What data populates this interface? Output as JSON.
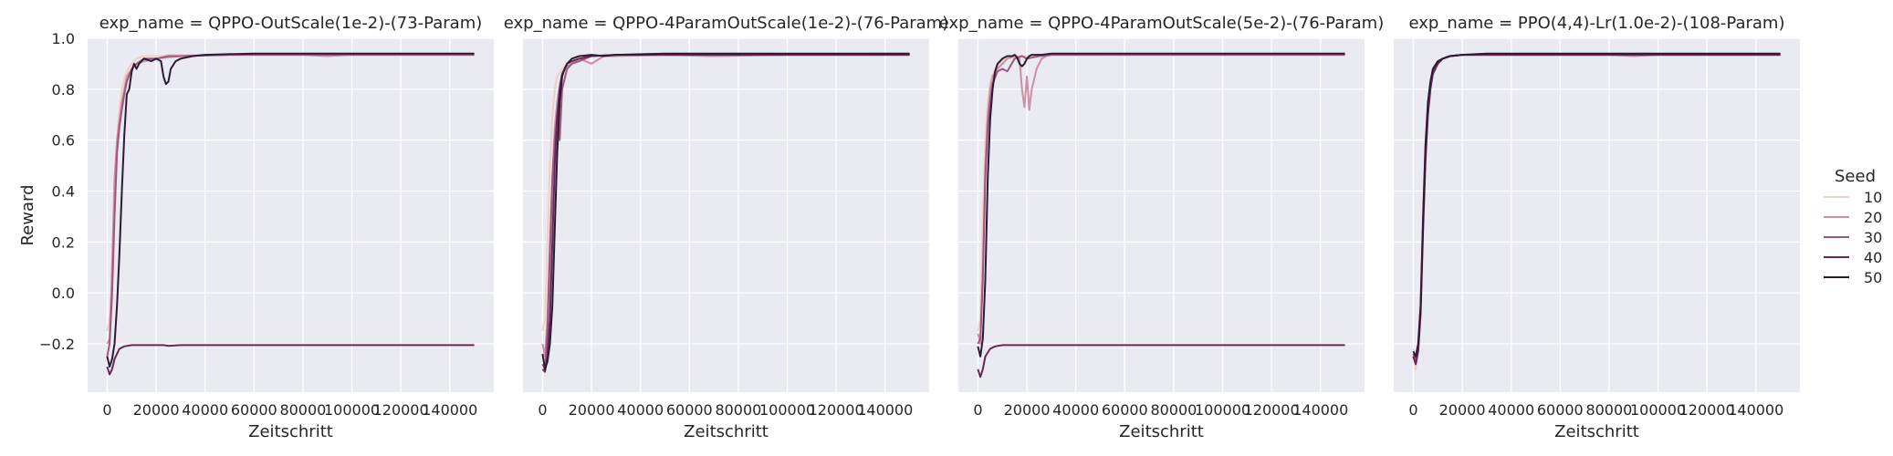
{
  "chart_data": {
    "type": "line",
    "xlabel": "Zeitschritt",
    "ylabel": "Reward",
    "xlim": [
      -8000,
      158000
    ],
    "ylim": [
      -0.39,
      1.0
    ],
    "xticks": [
      0,
      20000,
      40000,
      60000,
      80000,
      100000,
      120000,
      140000
    ],
    "xtick_labels": [
      "0",
      "20000",
      "40000",
      "60000",
      "80000",
      "100000",
      "120000",
      "140000"
    ],
    "yticks": [
      -0.2,
      0.0,
      0.2,
      0.4,
      0.6,
      0.8,
      1.0
    ],
    "ytick_labels": [
      "−0.2",
      "0.0",
      "0.2",
      "0.4",
      "0.6",
      "0.8",
      "1.0"
    ],
    "grid": true,
    "legend": {
      "title": "Seed",
      "placement": "right",
      "entries": [
        {
          "label": "10",
          "color": "#efd0c6"
        },
        {
          "label": "20",
          "color": "#cf8ea4"
        },
        {
          "label": "30",
          "color": "#a1567f"
        },
        {
          "label": "40",
          "color": "#662856"
        },
        {
          "label": "50",
          "color": "#2b1b35"
        }
      ]
    },
    "panels": [
      {
        "title": "exp_name = QPPO-OutScale(1e-2)-(73-Param)",
        "series": [
          {
            "name": "10",
            "x": [
              0,
              2000,
              3000,
              4000,
              5000,
              6000,
              7000,
              8000,
              10000,
              12000,
              15000,
              20000,
              25000,
              30000,
              40000,
              60000,
              100000,
              150000
            ],
            "y": [
              -0.15,
              -0.05,
              0.3,
              0.6,
              0.72,
              0.8,
              0.84,
              0.87,
              0.9,
              0.92,
              0.93,
              0.93,
              0.935,
              0.935,
              0.935,
              0.94,
              0.94,
              0.94
            ]
          },
          {
            "name": "20",
            "x": [
              0,
              1000,
              2000,
              3000,
              4000,
              5000,
              6000,
              7000,
              8000,
              10000,
              12000,
              15000,
              20000,
              30000,
              50000,
              80000,
              90000,
              100000,
              150000
            ],
            "y": [
              -0.2,
              -0.18,
              0.1,
              0.45,
              0.6,
              0.68,
              0.75,
              0.8,
              0.85,
              0.88,
              0.9,
              0.91,
              0.92,
              0.93,
              0.935,
              0.935,
              0.93,
              0.935,
              0.935
            ]
          },
          {
            "name": "30",
            "x": [
              0,
              1000,
              2000,
              3000,
              4000,
              5000,
              6000,
              7000,
              8000,
              10000,
              12000,
              15000,
              20000,
              25000,
              30000,
              50000,
              100000,
              150000
            ],
            "y": [
              -0.25,
              -0.2,
              0.0,
              0.3,
              0.55,
              0.65,
              0.72,
              0.78,
              0.83,
              0.88,
              0.9,
              0.92,
              0.92,
              0.93,
              0.93,
              0.935,
              0.935,
              0.935
            ]
          },
          {
            "name": "40",
            "x": [
              0,
              1000,
              2000,
              3000,
              5000,
              7000,
              10000,
              15000,
              20000,
              23000,
              25000,
              30000,
              50000,
              80000,
              120000,
              150000
            ],
            "y": [
              -0.29,
              -0.32,
              -0.3,
              -0.26,
              -0.22,
              -0.21,
              -0.205,
              -0.205,
              -0.205,
              -0.205,
              -0.208,
              -0.205,
              -0.205,
              -0.205,
              -0.205,
              -0.205
            ]
          },
          {
            "name": "50",
            "x": [
              0,
              1000,
              2000,
              3000,
              4000,
              5000,
              6000,
              7000,
              8000,
              9000,
              10000,
              11000,
              12000,
              13000,
              15000,
              18000,
              20000,
              22000,
              23000,
              24000,
              25000,
              26000,
              28000,
              30000,
              35000,
              40000,
              60000,
              80000,
              100000,
              150000
            ],
            "y": [
              -0.25,
              -0.29,
              -0.26,
              -0.2,
              -0.05,
              0.15,
              0.4,
              0.62,
              0.78,
              0.8,
              0.87,
              0.9,
              0.88,
              0.9,
              0.92,
              0.91,
              0.92,
              0.91,
              0.85,
              0.82,
              0.83,
              0.88,
              0.91,
              0.92,
              0.93,
              0.935,
              0.94,
              0.94,
              0.94,
              0.94
            ]
          }
        ]
      },
      {
        "title": "exp_name = QPPO-4ParamOutScale(1e-2)-(76-Param)",
        "series": [
          {
            "name": "10",
            "x": [
              0,
              1000,
              2000,
              3000,
              4000,
              5000,
              6000,
              8000,
              10000,
              12000,
              15000,
              20000,
              30000,
              50000,
              150000
            ],
            "y": [
              -0.15,
              -0.1,
              0.2,
              0.5,
              0.7,
              0.8,
              0.85,
              0.88,
              0.9,
              0.92,
              0.93,
              0.93,
              0.935,
              0.935,
              0.94
            ]
          },
          {
            "name": "20",
            "x": [
              0,
              1000,
              2000,
              3000,
              4000,
              5000,
              6000,
              7000,
              8000,
              10000,
              12000,
              15000,
              20000,
              25000,
              30000,
              50000,
              70000,
              100000,
              150000
            ],
            "y": [
              -0.2,
              -0.25,
              -0.1,
              0.2,
              0.45,
              0.65,
              0.75,
              0.82,
              0.86,
              0.89,
              0.9,
              0.92,
              0.9,
              0.93,
              0.93,
              0.935,
              0.93,
              0.935,
              0.935
            ]
          },
          {
            "name": "30",
            "x": [
              0,
              1000,
              2000,
              3000,
              4000,
              5000,
              6000,
              7000,
              8000,
              10000,
              12000,
              15000,
              20000,
              30000,
              50000,
              150000
            ],
            "y": [
              -0.28,
              -0.3,
              -0.15,
              0.15,
              0.45,
              0.6,
              0.7,
              0.6,
              0.8,
              0.88,
              0.9,
              0.91,
              0.93,
              0.935,
              0.935,
              0.935
            ]
          },
          {
            "name": "40",
            "x": [
              0,
              1000,
              2000,
              3000,
              4000,
              5000,
              6000,
              7000,
              8000,
              10000,
              12000,
              15000,
              20000,
              30000,
              50000,
              150000
            ],
            "y": [
              -0.3,
              -0.31,
              -0.25,
              -0.1,
              0.2,
              0.5,
              0.7,
              0.8,
              0.86,
              0.9,
              0.91,
              0.92,
              0.93,
              0.935,
              0.935,
              0.935
            ]
          },
          {
            "name": "50",
            "x": [
              0,
              1000,
              2000,
              3000,
              4000,
              5000,
              6000,
              7000,
              8000,
              9000,
              10000,
              12000,
              15000,
              20000,
              25000,
              30000,
              50000,
              100000,
              150000
            ],
            "y": [
              -0.24,
              -0.3,
              -0.27,
              -0.2,
              -0.05,
              0.25,
              0.55,
              0.75,
              0.85,
              0.88,
              0.9,
              0.92,
              0.93,
              0.935,
              0.93,
              0.935,
              0.94,
              0.94,
              0.94
            ]
          }
        ]
      },
      {
        "title": "exp_name = QPPO-4ParamOutScale(5e-2)-(76-Param)",
        "series": [
          {
            "name": "10",
            "x": [
              0,
              1000,
              2000,
              3000,
              4000,
              5000,
              6000,
              8000,
              10000,
              12000,
              15000,
              20000,
              30000,
              50000,
              150000
            ],
            "y": [
              -0.15,
              -0.1,
              0.3,
              0.6,
              0.75,
              0.82,
              0.86,
              0.89,
              0.91,
              0.92,
              0.93,
              0.93,
              0.935,
              0.935,
              0.94
            ]
          },
          {
            "name": "20",
            "x": [
              0,
              1000,
              2000,
              3000,
              4000,
              5000,
              6000,
              8000,
              10000,
              12000,
              15000,
              17000,
              18000,
              19000,
              20000,
              21000,
              22000,
              24000,
              26000,
              28000,
              30000,
              40000,
              60000,
              150000
            ],
            "y": [
              -0.16,
              -0.2,
              0.1,
              0.5,
              0.7,
              0.8,
              0.85,
              0.88,
              0.9,
              0.92,
              0.93,
              0.92,
              0.8,
              0.73,
              0.85,
              0.72,
              0.8,
              0.88,
              0.92,
              0.93,
              0.935,
              0.935,
              0.935,
              0.935
            ]
          },
          {
            "name": "30",
            "x": [
              0,
              1000,
              2000,
              3000,
              4000,
              5000,
              6000,
              8000,
              10000,
              12000,
              15000,
              18000,
              20000,
              25000,
              30000,
              50000,
              150000
            ],
            "y": [
              -0.2,
              -0.18,
              0.05,
              0.45,
              0.65,
              0.75,
              0.82,
              0.87,
              0.88,
              0.87,
              0.92,
              0.93,
              0.92,
              0.93,
              0.935,
              0.935,
              0.935
            ]
          },
          {
            "name": "40",
            "x": [
              0,
              1000,
              2000,
              3000,
              5000,
              7000,
              10000,
              15000,
              20000,
              30000,
              50000,
              80000,
              120000,
              150000
            ],
            "y": [
              -0.3,
              -0.33,
              -0.3,
              -0.25,
              -0.22,
              -0.21,
              -0.205,
              -0.205,
              -0.205,
              -0.205,
              -0.205,
              -0.205,
              -0.205,
              -0.205
            ]
          },
          {
            "name": "50",
            "x": [
              0,
              1000,
              2000,
              3000,
              4000,
              5000,
              6000,
              7000,
              8000,
              10000,
              12000,
              14000,
              15000,
              16000,
              17000,
              18000,
              19000,
              20000,
              21000,
              22000,
              24000,
              26000,
              30000,
              40000,
              60000,
              100000,
              150000
            ],
            "y": [
              -0.21,
              -0.25,
              -0.18,
              0.05,
              0.45,
              0.68,
              0.8,
              0.87,
              0.9,
              0.92,
              0.93,
              0.93,
              0.935,
              0.925,
              0.9,
              0.89,
              0.9,
              0.92,
              0.93,
              0.935,
              0.935,
              0.935,
              0.94,
              0.94,
              0.94,
              0.94,
              0.94
            ]
          }
        ]
      },
      {
        "title": "exp_name = PPO(4,4)-Lr(1.0e-2)-(108-Param)",
        "series": [
          {
            "name": "10",
            "x": [
              0,
              1000,
              2000,
              3000,
              4000,
              5000,
              6000,
              7000,
              8000,
              10000,
              12000,
              15000,
              20000,
              30000,
              50000,
              150000
            ],
            "y": [
              -0.22,
              -0.3,
              -0.2,
              0.0,
              0.35,
              0.6,
              0.75,
              0.83,
              0.87,
              0.9,
              0.92,
              0.93,
              0.935,
              0.935,
              0.935,
              0.935
            ]
          },
          {
            "name": "20",
            "x": [
              0,
              1000,
              2000,
              3000,
              4000,
              5000,
              6000,
              7000,
              8000,
              10000,
              12000,
              15000,
              20000,
              30000,
              50000,
              80000,
              90000,
              100000,
              150000
            ],
            "y": [
              -0.25,
              -0.28,
              -0.22,
              -0.05,
              0.3,
              0.58,
              0.74,
              0.82,
              0.87,
              0.9,
              0.92,
              0.93,
              0.935,
              0.935,
              0.935,
              0.935,
              0.93,
              0.935,
              0.935
            ]
          },
          {
            "name": "30",
            "x": [
              0,
              1000,
              2000,
              3000,
              4000,
              5000,
              6000,
              7000,
              8000,
              10000,
              12000,
              15000,
              20000,
              30000,
              150000
            ],
            "y": [
              -0.24,
              -0.27,
              -0.22,
              -0.05,
              0.28,
              0.55,
              0.72,
              0.82,
              0.87,
              0.9,
              0.92,
              0.93,
              0.935,
              0.935,
              0.935
            ]
          },
          {
            "name": "40",
            "x": [
              0,
              1000,
              2000,
              3000,
              4000,
              5000,
              6000,
              7000,
              8000,
              10000,
              12000,
              15000,
              20000,
              30000,
              150000
            ],
            "y": [
              -0.25,
              -0.28,
              -0.23,
              -0.08,
              0.25,
              0.52,
              0.7,
              0.8,
              0.86,
              0.9,
              0.92,
              0.93,
              0.935,
              0.935,
              0.935
            ]
          },
          {
            "name": "50",
            "x": [
              0,
              1000,
              2000,
              3000,
              4000,
              5000,
              6000,
              7000,
              8000,
              10000,
              12000,
              15000,
              20000,
              30000,
              50000,
              150000
            ],
            "y": [
              -0.23,
              -0.25,
              -0.2,
              -0.05,
              0.3,
              0.58,
              0.75,
              0.83,
              0.88,
              0.91,
              0.92,
              0.93,
              0.935,
              0.94,
              0.94,
              0.94
            ]
          }
        ]
      }
    ]
  }
}
